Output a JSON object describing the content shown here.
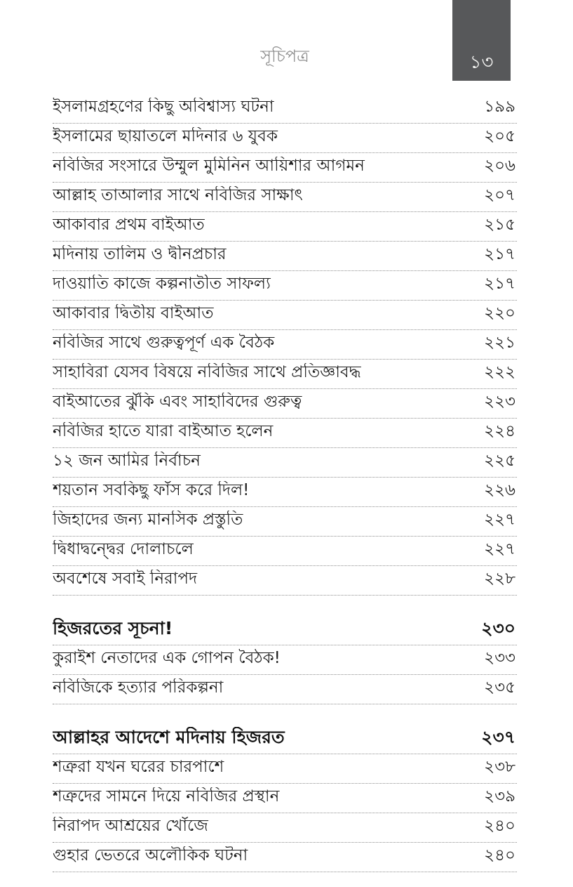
{
  "page": {
    "running_head": "সূচিপত্র",
    "folio_number": "১৩",
    "colors": {
      "folio_box_background": "#57585a",
      "folio_number_text": "#f4f4f2",
      "running_head_text": "#8c8c8c",
      "entry_text": "#1d1d1d",
      "leader_dots": "#8f8f8f",
      "page_background": "#ffffff"
    }
  },
  "toc": {
    "entries": [
      {
        "title": "ইসলামগ্রহণের কিছু অবিশ্বাস্য ঘটনা",
        "page": "১৯৯",
        "bold": false,
        "gap": false
      },
      {
        "title": "ইসলামের ছায়াতলে মদিনার ৬ যুবক",
        "page": "২০৫",
        "bold": false,
        "gap": false
      },
      {
        "title": "নবিজির সংসারে উম্মুল মুমিনিন আয়িশার আগমন",
        "page": "২০৬",
        "bold": false,
        "gap": false
      },
      {
        "title": "আল্লাহ তাআলার সাথে নবিজির সাক্ষাৎ",
        "page": "২০৭",
        "bold": false,
        "gap": false
      },
      {
        "title": "আকাবার প্রথম বাইআত",
        "page": "২১৫",
        "bold": false,
        "gap": false
      },
      {
        "title": "মদিনায় তালিম ও দ্বীনপ্রচার",
        "page": "২১৭",
        "bold": false,
        "gap": false
      },
      {
        "title": "দাওয়াতি কাজে কল্পনাতীত সাফল্য",
        "page": "২১৭",
        "bold": false,
        "gap": false
      },
      {
        "title": "আকাবার দ্বিতীয় বাইআত",
        "page": "২২০",
        "bold": false,
        "gap": false
      },
      {
        "title": "নবিজির সাথে গুরুত্বপূর্ণ এক বৈঠক",
        "page": "২২১",
        "bold": false,
        "gap": false
      },
      {
        "title": "সাহাবিরা যেসব বিষয়ে নবিজির সাথে প্রতিজ্ঞাবদ্ধ",
        "page": "২২২",
        "bold": false,
        "gap": false
      },
      {
        "title": "বাইআতের ঝুঁকি এবং সাহাবিদের গুরুত্ব",
        "page": "২২৩",
        "bold": false,
        "gap": false
      },
      {
        "title": "নবিজির হাতে যারা বাইআত হলেন",
        "page": "২২৪",
        "bold": false,
        "gap": false
      },
      {
        "title": "১২ জন আমির নির্বাচন",
        "page": "২২৫",
        "bold": false,
        "gap": false
      },
      {
        "title": "শয়তান সবকিছু ফাঁস করে দিল!",
        "page": "২২৬",
        "bold": false,
        "gap": false
      },
      {
        "title": "জিহাদের জন্য মানসিক প্রস্তুতি",
        "page": "২২৭",
        "bold": false,
        "gap": false
      },
      {
        "title": "দ্বিধাদ্বন্দ্বের দোলাচলে",
        "page": "২২৭",
        "bold": false,
        "gap": false
      },
      {
        "title": "অবশেষে সবাই নিরাপদ",
        "page": "২২৮",
        "bold": false,
        "gap": false
      },
      {
        "title": "হিজরতের সূচনা!",
        "page": "২৩০",
        "bold": true,
        "gap": true
      },
      {
        "title": "কুরাইশ নেতাদের এক গোপন বৈঠক!",
        "page": "২৩৩",
        "bold": false,
        "gap": false
      },
      {
        "title": "নবিজিকে হত্যার পরিকল্পনা",
        "page": "২৩৫",
        "bold": false,
        "gap": false
      },
      {
        "title": "আল্লাহর আদেশে মদিনায় হিজরত",
        "page": "২৩৭",
        "bold": true,
        "gap": true
      },
      {
        "title": "শত্রুরা যখন ঘরের চারপাশে",
        "page": "২৩৮",
        "bold": false,
        "gap": false
      },
      {
        "title": "শত্রুদের সামনে দিয়ে নবিজির প্রস্থান",
        "page": "২৩৯",
        "bold": false,
        "gap": false
      },
      {
        "title": "নিরাপদ আশ্রয়ের খোঁজে",
        "page": "২৪০",
        "bold": false,
        "gap": false
      },
      {
        "title": "গুহার ভেতরে অলৌকিক ঘটনা",
        "page": "২৪০",
        "bold": false,
        "gap": false
      }
    ]
  }
}
